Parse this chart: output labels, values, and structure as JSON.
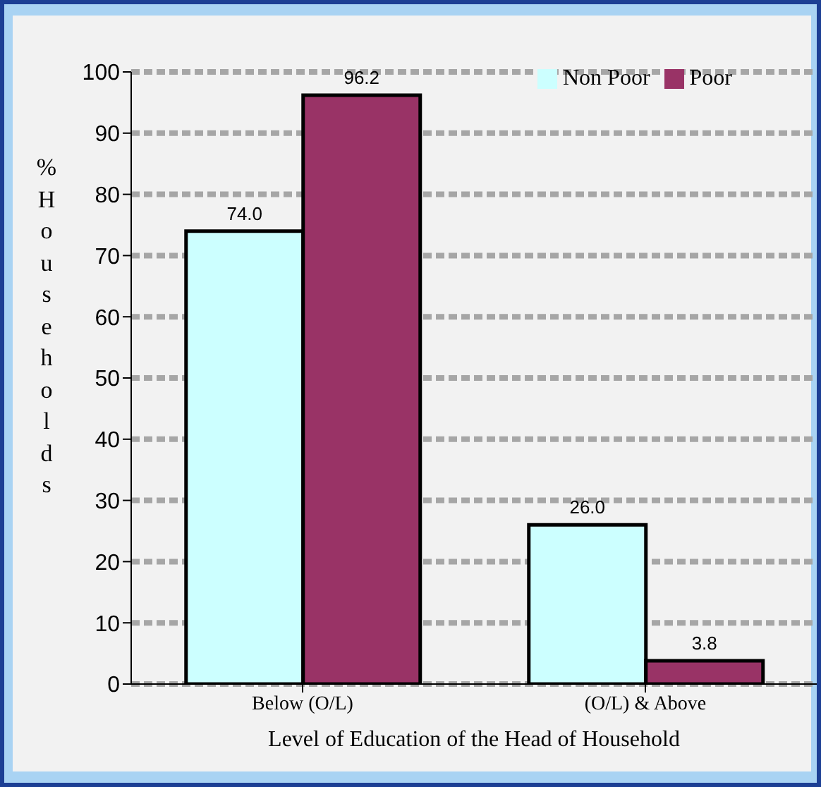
{
  "chart_data": {
    "type": "bar",
    "xlabel": "Level of Education of the Head of Household",
    "ylabel": "% Households",
    "categories": [
      "Below (O/L)",
      "(O/L) & Above"
    ],
    "series": [
      {
        "name": "Non Poor",
        "color": "#ccffff",
        "values": [
          74.0,
          26.0
        ],
        "value_labels": [
          "74.0",
          "26.0"
        ]
      },
      {
        "name": "Poor",
        "color": "#993366",
        "values": [
          96.2,
          3.8
        ],
        "value_labels": [
          "96.2",
          "3.8"
        ]
      }
    ],
    "ylim": [
      0,
      100
    ],
    "yticks": [
      0,
      10,
      20,
      30,
      40,
      50,
      60,
      70,
      80,
      90,
      100
    ],
    "grid": "y",
    "legend": "top right"
  }
}
